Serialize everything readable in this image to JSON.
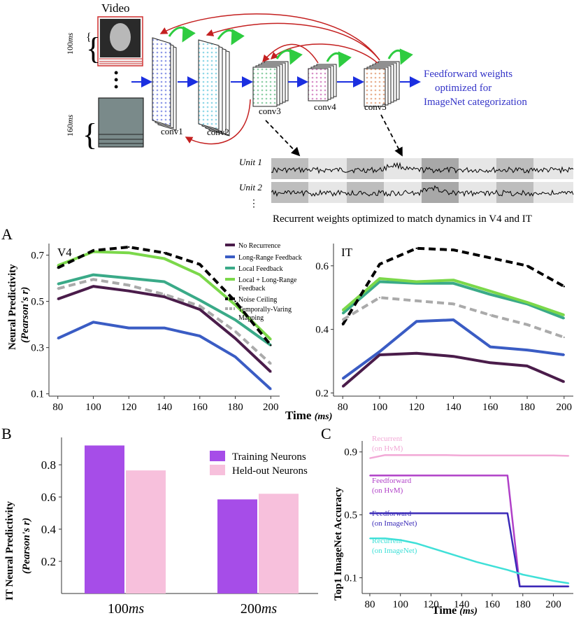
{
  "diagram": {
    "video_label": "Video",
    "time_top": {
      "value": "100",
      "unit": "ms"
    },
    "time_bottom": {
      "value": "160",
      "unit": "ms"
    },
    "ellipsis": "•\n•\n•",
    "layers": [
      "conv1",
      "conv2",
      "conv3",
      "conv4",
      "conv5"
    ],
    "ff_text": [
      "Feedforward weights",
      "optimized for",
      "ImageNet categorization"
    ],
    "units": [
      "Unit 1",
      "Unit 2"
    ],
    "units_more": "⋮",
    "recurrent_caption": "Recurrent weights optimized to match dynamics in V4 and IT",
    "colors": {
      "arrow_blue": "#1b2fe0",
      "arrow_red": "#c42020",
      "arrow_green": "#2ecc40",
      "ff_text": "#3434c8"
    }
  },
  "panel_labels": {
    "A": "A",
    "B": "B",
    "C": "C"
  },
  "chart_data": [
    {
      "id": "A-V4",
      "type": "line",
      "title": "V4",
      "xlabel": "Time",
      "xlabel_unit": "(ms)",
      "ylabel": "Neural Predictivity",
      "ylabel_sub": "(Pearson's r)",
      "x": [
        80,
        100,
        120,
        140,
        160,
        180,
        200
      ],
      "xlim": [
        75,
        205
      ],
      "ylim": [
        0.09,
        0.75
      ],
      "yticks": [
        "0.1",
        "0.3",
        "0.5",
        "0.7"
      ],
      "xticks": [
        "80",
        "100",
        "120",
        "140",
        "160",
        "180",
        "200"
      ],
      "series": [
        {
          "name": "No Recurrence",
          "color": "#4a1c4a",
          "style": "solid",
          "values": [
            0.51,
            0.565,
            0.545,
            0.52,
            0.465,
            0.34,
            0.195
          ]
        },
        {
          "name": "Long-Range Feedback",
          "color": "#3a5cc4",
          "style": "solid",
          "values": [
            0.34,
            0.41,
            0.385,
            0.385,
            0.35,
            0.26,
            0.12
          ]
        },
        {
          "name": "Local Feedback",
          "color": "#3aaa88",
          "style": "solid",
          "values": [
            0.575,
            0.615,
            0.6,
            0.585,
            0.505,
            0.42,
            0.31
          ]
        },
        {
          "name": "Local + Long-Range Feedback",
          "color": "#7bd84a",
          "style": "solid",
          "values": [
            0.655,
            0.715,
            0.71,
            0.685,
            0.615,
            0.485,
            0.335
          ]
        },
        {
          "name": "Noise Ceiling",
          "color": "#000000",
          "style": "dashed",
          "values": [
            0.645,
            0.72,
            0.735,
            0.71,
            0.66,
            0.5,
            0.31
          ]
        },
        {
          "name": "Temporally-Varing Mapping",
          "color": "#aaaaaa",
          "style": "dashed",
          "values": [
            0.555,
            0.595,
            0.57,
            0.53,
            0.48,
            0.37,
            0.23
          ]
        }
      ]
    },
    {
      "id": "A-IT",
      "type": "line",
      "title": "IT",
      "xlabel": "Time",
      "xlabel_unit": "(ms)",
      "x": [
        80,
        100,
        120,
        140,
        160,
        180,
        200
      ],
      "xlim": [
        75,
        205
      ],
      "ylim": [
        0.19,
        0.67
      ],
      "yticks": [
        "0.2",
        "0.4",
        "0.6"
      ],
      "xticks": [
        "80",
        "100",
        "120",
        "140",
        "160",
        "180",
        "200"
      ],
      "series": [
        {
          "name": "No Recurrence",
          "color": "#4a1c4a",
          "style": "solid",
          "values": [
            0.22,
            0.32,
            0.325,
            0.315,
            0.295,
            0.285,
            0.235
          ]
        },
        {
          "name": "Long-Range Feedback",
          "color": "#3a5cc4",
          "style": "solid",
          "values": [
            0.245,
            0.33,
            0.425,
            0.43,
            0.345,
            0.335,
            0.32
          ]
        },
        {
          "name": "Local Feedback",
          "color": "#3aaa88",
          "style": "solid",
          "values": [
            0.45,
            0.55,
            0.545,
            0.545,
            0.51,
            0.48,
            0.435
          ]
        },
        {
          "name": "Local + Long-Range Feedback",
          "color": "#7bd84a",
          "style": "solid",
          "values": [
            0.46,
            0.56,
            0.55,
            0.555,
            0.52,
            0.485,
            0.445
          ]
        },
        {
          "name": "Noise Ceiling",
          "color": "#000000",
          "style": "dashed",
          "values": [
            0.415,
            0.605,
            0.655,
            0.65,
            0.625,
            0.6,
            0.535
          ]
        },
        {
          "name": "Temporally-Varing Mapping",
          "color": "#aaaaaa",
          "style": "dashed",
          "values": [
            0.43,
            0.5,
            0.49,
            0.48,
            0.445,
            0.415,
            0.375
          ]
        }
      ]
    },
    {
      "id": "B",
      "type": "bar",
      "ylabel": "IT Neural Predictivity",
      "ylabel_sub": "(Pearson's r)",
      "categories": [
        {
          "value": "100",
          "unit": "ms"
        },
        {
          "value": "200",
          "unit": "ms"
        }
      ],
      "ylim": [
        0,
        0.97
      ],
      "yticks": [
        "0.2",
        "0.4",
        "0.6",
        "0.8"
      ],
      "series": [
        {
          "name": "Training Neurons",
          "color": "#a64de8",
          "values": [
            0.92,
            0.585
          ]
        },
        {
          "name": "Held-out Neurons",
          "color": "#f7c0dc",
          "values": [
            0.765,
            0.62
          ]
        }
      ]
    },
    {
      "id": "C",
      "type": "line",
      "xlabel": "Time",
      "xlabel_unit": "(ms)",
      "ylabel": "Top1 ImageNet Accuracy",
      "xlim": [
        75,
        213
      ],
      "ylim": [
        0.0,
        0.97
      ],
      "yticks": [
        "0.1",
        "0.5",
        "0.9"
      ],
      "xticks": [
        "80",
        "100",
        "120",
        "140",
        "160",
        "180",
        "200"
      ],
      "series": [
        {
          "name": "Recurrent",
          "sub": "(on HvM)",
          "color": "#f2a8d6",
          "x": [
            80,
            90,
            100,
            110,
            120,
            130,
            140,
            150,
            160,
            170,
            180,
            190,
            200,
            210
          ],
          "values": [
            0.86,
            0.88,
            0.88,
            0.88,
            0.88,
            0.88,
            0.878,
            0.878,
            0.878,
            0.878,
            0.878,
            0.878,
            0.878,
            0.875
          ]
        },
        {
          "name": "Feedforward",
          "sub": "(on HvM)",
          "color": "#b040c8",
          "x": [
            80,
            170,
            178,
            210
          ],
          "values": [
            0.75,
            0.75,
            0.045,
            0.045
          ]
        },
        {
          "name": "Feedforward",
          "sub": "(on ImageNet)",
          "color": "#3a2ab8",
          "x": [
            80,
            170,
            178,
            210
          ],
          "values": [
            0.51,
            0.51,
            0.045,
            0.045
          ]
        },
        {
          "name": "Recurrent",
          "sub": "(on ImageNet)",
          "color": "#3fe0d8",
          "x": [
            80,
            90,
            100,
            110,
            120,
            130,
            140,
            150,
            160,
            170,
            180,
            190,
            200,
            210
          ],
          "values": [
            0.35,
            0.35,
            0.34,
            0.32,
            0.29,
            0.26,
            0.23,
            0.2,
            0.175,
            0.15,
            0.12,
            0.1,
            0.08,
            0.065
          ]
        }
      ]
    }
  ]
}
